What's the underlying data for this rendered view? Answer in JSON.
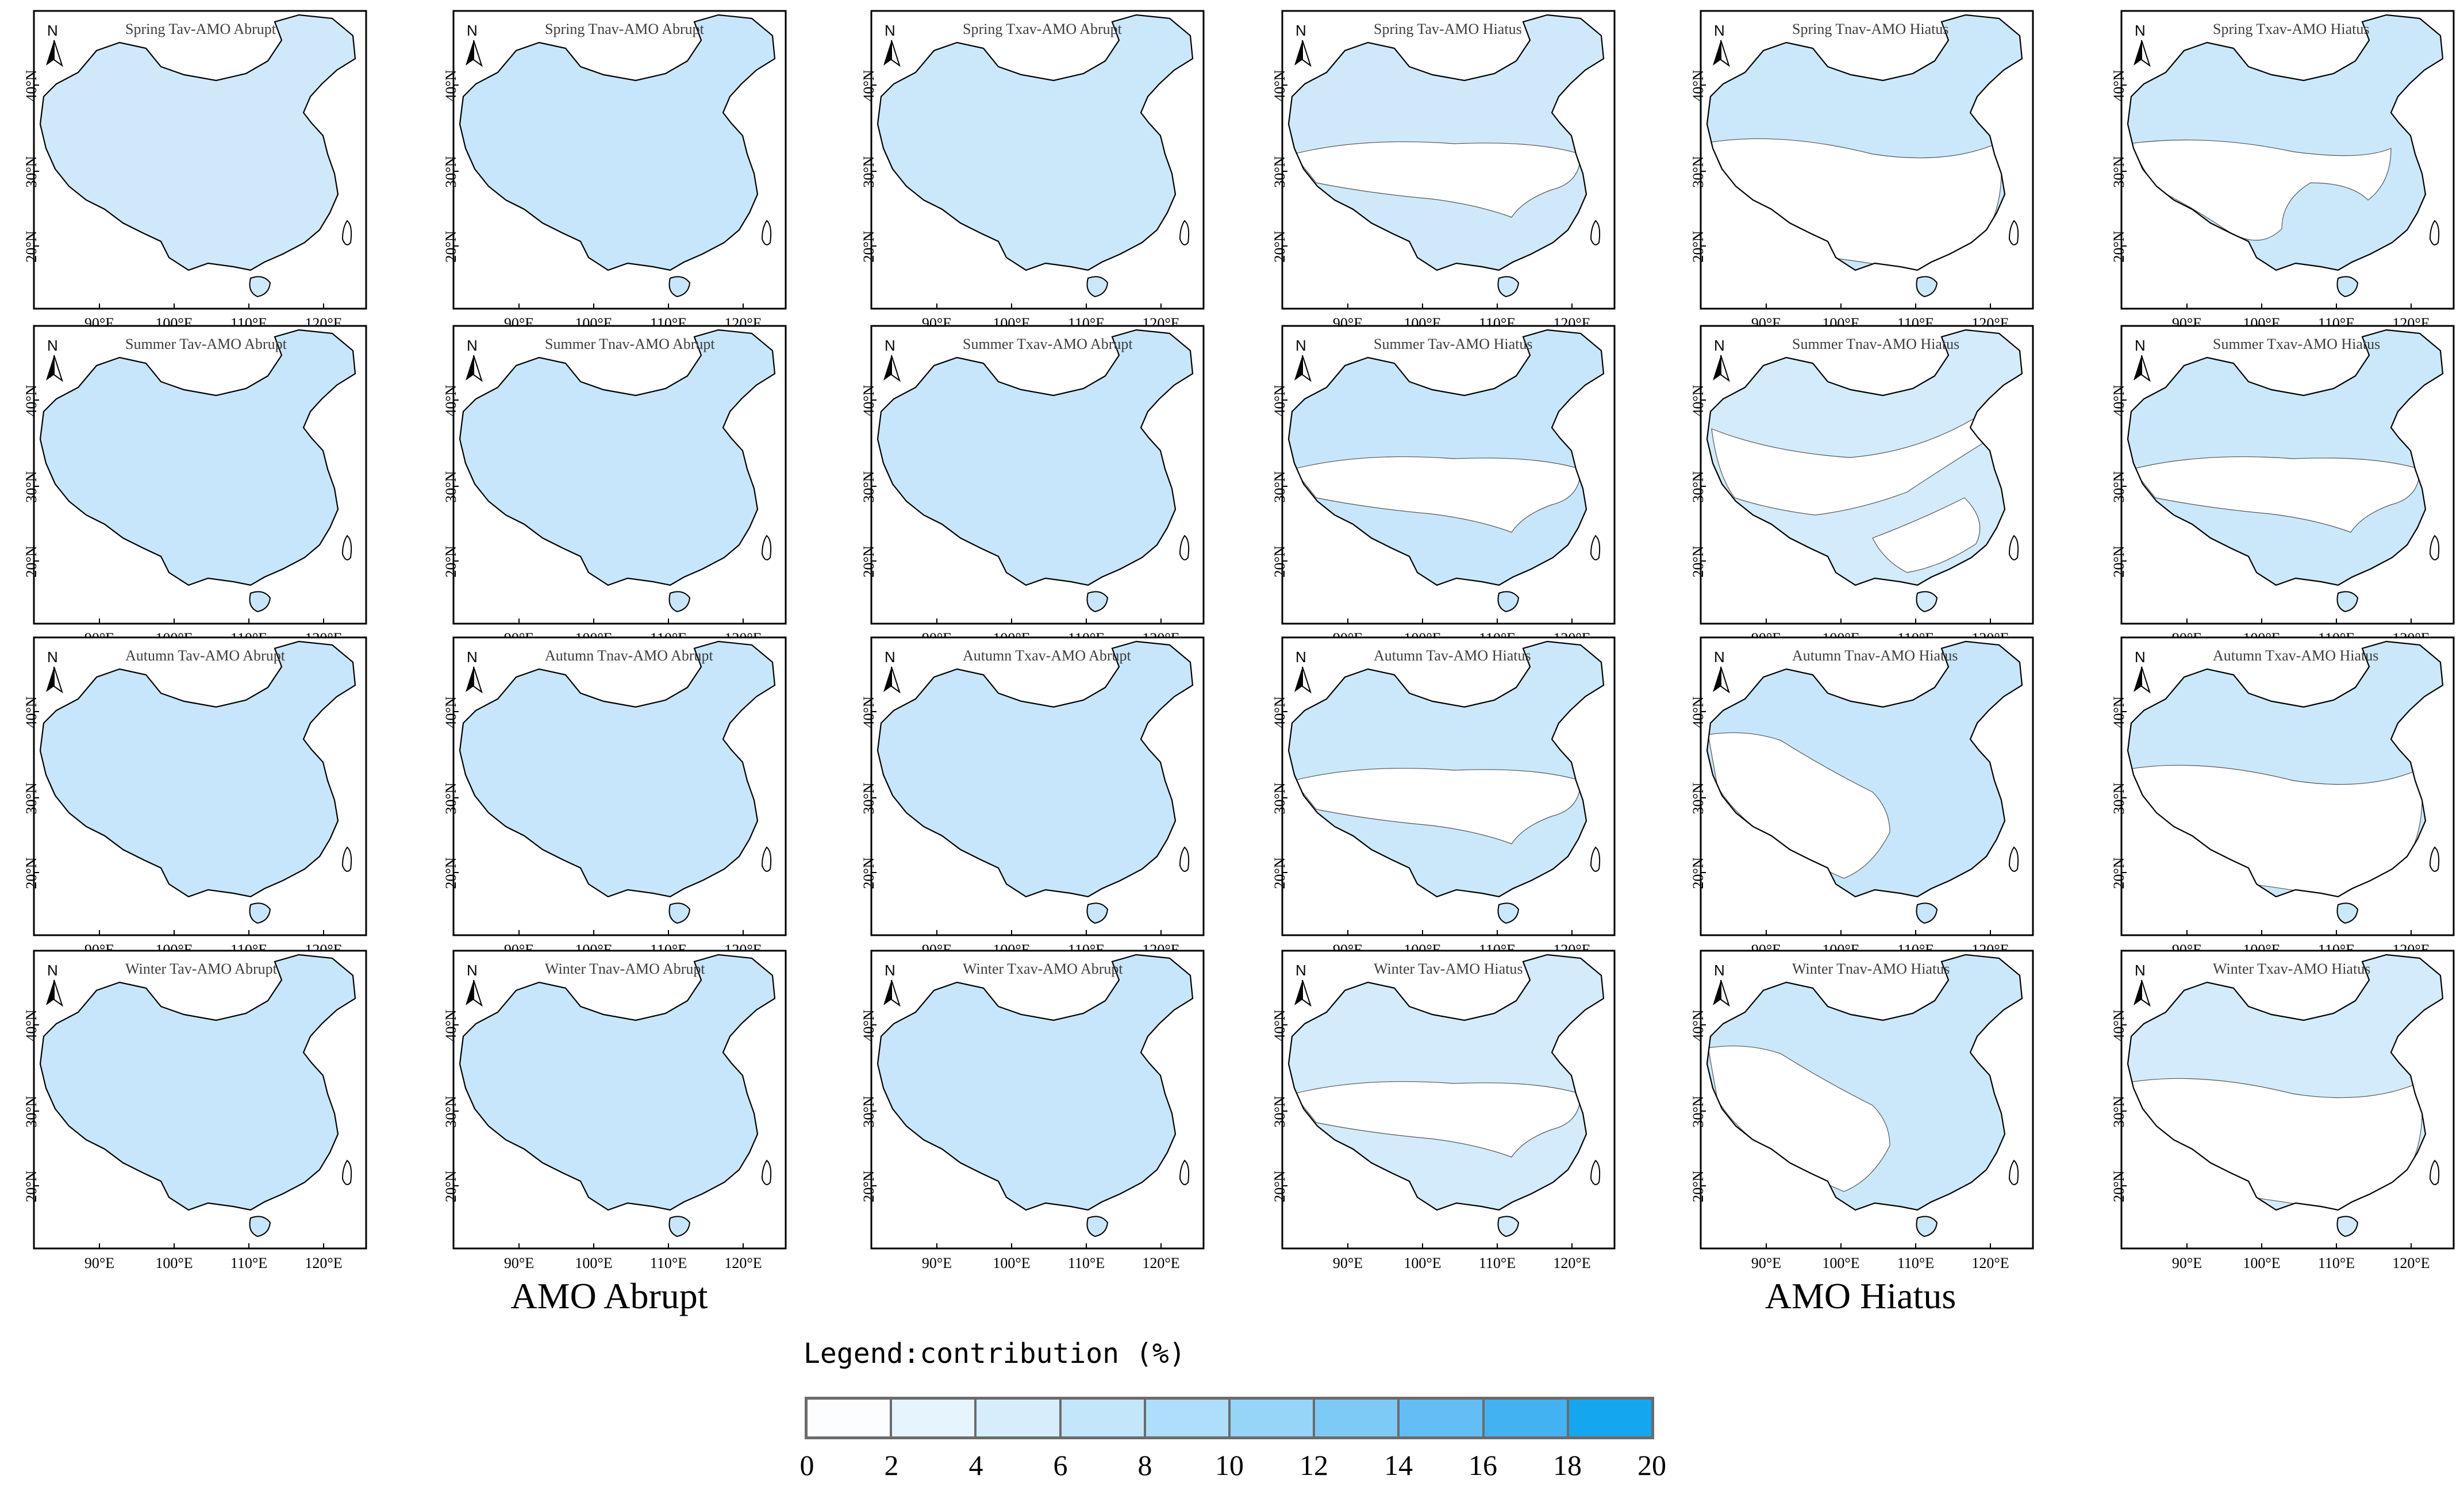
{
  "panels": [
    {
      "title": "Spring Tav-AMO Abrupt",
      "row": 0,
      "col": 0,
      "pattern": "full",
      "shade": "#cfe9fb"
    },
    {
      "title": "Spring Tnav-AMO Abrupt",
      "row": 0,
      "col": 1,
      "pattern": "full",
      "shade": "#c8e6fb"
    },
    {
      "title": "Spring Txav-AMO Abrupt",
      "row": 0,
      "col": 2,
      "pattern": "full",
      "shade": "#cbe8fb"
    },
    {
      "title": "Spring Tav-AMO Hiatus",
      "row": 0,
      "col": 3,
      "pattern": "north_south",
      "shade": "#cfe9fb"
    },
    {
      "title": "Spring Tnav-AMO Hiatus",
      "row": 0,
      "col": 4,
      "pattern": "north_band",
      "shade": "#cbe8fb"
    },
    {
      "title": "Spring Txav-AMO Hiatus",
      "row": 0,
      "col": 5,
      "pattern": "north_east",
      "shade": "#cbe8fb"
    },
    {
      "title": "Summer Tav-AMO Abrupt",
      "row": 1,
      "col": 0,
      "pattern": "full",
      "shade": "#c8e6fb"
    },
    {
      "title": "Summer Tnav-AMO Abrupt",
      "row": 1,
      "col": 1,
      "pattern": "full",
      "shade": "#c8e6fb"
    },
    {
      "title": "Summer Txav-AMO Abrupt",
      "row": 1,
      "col": 2,
      "pattern": "full",
      "shade": "#c8e6fb"
    },
    {
      "title": "Summer Tav-AMO Hiatus",
      "row": 1,
      "col": 3,
      "pattern": "north_south",
      "shade": "#c8e6fb"
    },
    {
      "title": "Summer Tnav-AMO Hiatus",
      "row": 1,
      "col": 4,
      "pattern": "diagonal",
      "shade": "#d3ebfb"
    },
    {
      "title": "Summer Txav-AMO Hiatus",
      "row": 1,
      "col": 5,
      "pattern": "north_south",
      "shade": "#cbe8fb"
    },
    {
      "title": "Autumn Tav-AMO Abrupt",
      "row": 2,
      "col": 0,
      "pattern": "full",
      "shade": "#c8e6fb"
    },
    {
      "title": "Autumn Tnav-AMO Abrupt",
      "row": 2,
      "col": 1,
      "pattern": "full",
      "shade": "#c8e6fb"
    },
    {
      "title": "Autumn Txav-AMO Abrupt",
      "row": 2,
      "col": 2,
      "pattern": "full",
      "shade": "#c8e6fb"
    },
    {
      "title": "Autumn Tav-AMO Hiatus",
      "row": 2,
      "col": 3,
      "pattern": "north_south",
      "shade": "#cbe8fb"
    },
    {
      "title": "Autumn Tnav-AMO Hiatus",
      "row": 2,
      "col": 4,
      "pattern": "east_band",
      "shade": "#c8e6fb"
    },
    {
      "title": "Autumn Txav-AMO Hiatus",
      "row": 2,
      "col": 5,
      "pattern": "north_band",
      "shade": "#cbe8fb"
    },
    {
      "title": "Winter Tav-AMO Abrupt",
      "row": 3,
      "col": 0,
      "pattern": "full",
      "shade": "#c8e6fb"
    },
    {
      "title": "Winter Tnav-AMO Abrupt",
      "row": 3,
      "col": 1,
      "pattern": "full",
      "shade": "#c8e6fb"
    },
    {
      "title": "Winter Txav-AMO Abrupt",
      "row": 3,
      "col": 2,
      "pattern": "full",
      "shade": "#c8e6fb"
    },
    {
      "title": "Winter Tav-AMO Hiatus",
      "row": 3,
      "col": 3,
      "pattern": "north_south",
      "shade": "#d3ebfb"
    },
    {
      "title": "Winter Tnav-AMO Hiatus",
      "row": 3,
      "col": 4,
      "pattern": "east_band",
      "shade": "#cbe8fb"
    },
    {
      "title": "Winter Txav-AMO Hiatus",
      "row": 3,
      "col": 5,
      "pattern": "north_band",
      "shade": "#d3ebfb"
    }
  ],
  "x_ticks": [
    "90°E",
    "100°E",
    "110°E",
    "120°E"
  ],
  "y_ticks": [
    "40°N",
    "30°N",
    "20°N"
  ],
  "north_label": "N",
  "group_labels": [
    "AMO Abrupt",
    "AMO Hiatus"
  ],
  "legend": {
    "title": "Legend:contribution (%)",
    "ticks": [
      "0",
      "2",
      "4",
      "6",
      "8",
      "10",
      "12",
      "14",
      "16",
      "18",
      "20"
    ],
    "colors": [
      "#fbfdff",
      "#e6f4fd",
      "#d6eefc",
      "#c4e6fb",
      "#aedef9",
      "#96d4f8",
      "#7ecaf6",
      "#62bef4",
      "#42b2f2",
      "#14a7f0"
    ]
  },
  "colors": {
    "outline": "#000000",
    "unshaded": "#ffffff"
  }
}
